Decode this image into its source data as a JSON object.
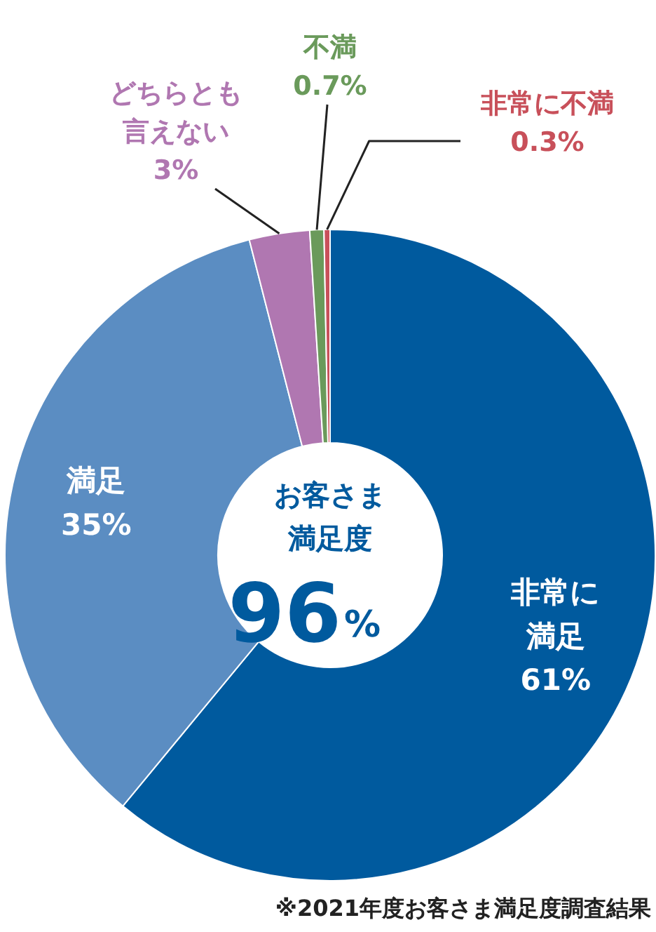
{
  "chart_data": {
    "type": "donut",
    "title": "お客さま満足度",
    "subtitle": "96%",
    "categories": [
      "非常に満足",
      "満足",
      "どちらとも言えない",
      "不満",
      "非常に不満"
    ],
    "values": [
      61,
      35,
      3,
      0.7,
      0.3
    ],
    "colors": [
      "#005a9e",
      "#5b8dc2",
      "#b077b1",
      "#6a9a5b",
      "#c8505a"
    ],
    "value_labels": [
      "61%",
      "35%",
      "3%",
      "0.7%",
      "0.3%"
    ],
    "annotations": [
      "※2021年度お客さま満足度調査結果"
    ]
  }
}
